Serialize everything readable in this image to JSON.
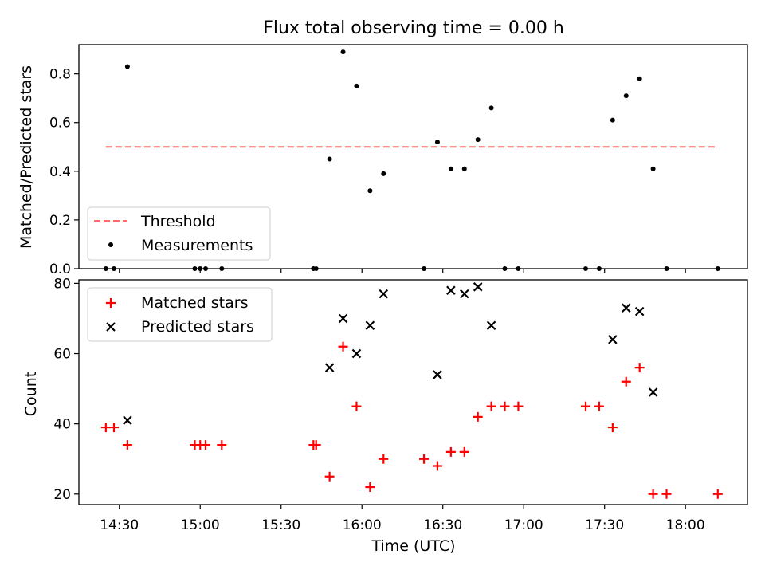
{
  "chart_data": [
    {
      "type": "scatter",
      "title": "Flux total observing time = 0.00 h",
      "xlabel": "",
      "ylabel": "Matched/Predicted stars",
      "ylim": [
        0,
        0.92
      ],
      "yticks": [
        0.0,
        0.2,
        0.4,
        0.6,
        0.8
      ],
      "ytick_labels": [
        "0.0",
        "0.2",
        "0.4",
        "0.6",
        "0.8"
      ],
      "xlim": [
        "14:15",
        "18:23"
      ],
      "grid": false,
      "legend_position": "lower-left",
      "threshold": {
        "name": "Threshold",
        "value": 0.5,
        "x_start": "14:25",
        "x_end": "18:12",
        "color": "#ff6b6b",
        "style": "dashed"
      },
      "series": [
        {
          "name": "Measurements",
          "marker": "dot",
          "color": "#000000",
          "x": [
            "14:25",
            "14:28",
            "14:33",
            "14:58",
            "15:00",
            "15:02",
            "15:08",
            "15:42",
            "15:43",
            "15:48",
            "15:53",
            "15:58",
            "16:03",
            "16:08",
            "16:23",
            "16:28",
            "16:33",
            "16:38",
            "16:43",
            "16:48",
            "16:53",
            "16:58",
            "17:23",
            "17:28",
            "17:33",
            "17:38",
            "17:43",
            "17:48",
            "17:53",
            "18:12"
          ],
          "y": [
            0,
            0,
            0.83,
            0,
            0,
            0,
            0,
            0,
            0,
            0.45,
            0.89,
            0.75,
            0.32,
            0.39,
            0,
            0.52,
            0.41,
            0.41,
            0.53,
            0.66,
            0,
            0,
            0,
            0,
            0.61,
            0.71,
            0.78,
            0.41,
            0,
            0
          ]
        }
      ]
    },
    {
      "type": "scatter",
      "title": "",
      "xlabel": "Time (UTC)",
      "ylabel": "Count",
      "ylim": [
        17,
        81
      ],
      "yticks": [
        20,
        40,
        60,
        80
      ],
      "ytick_labels": [
        "20",
        "40",
        "60",
        "80"
      ],
      "xlim": [
        "14:15",
        "18:23"
      ],
      "xticks": [
        "14:30",
        "15:00",
        "15:30",
        "16:00",
        "16:30",
        "17:00",
        "17:30",
        "18:00"
      ],
      "xtick_labels": [
        "14:30",
        "15:00",
        "15:30",
        "16:00",
        "16:30",
        "17:00",
        "17:30",
        "18:00"
      ],
      "grid": false,
      "legend_position": "upper-left",
      "series": [
        {
          "name": "Matched stars",
          "marker": "plus",
          "color": "#ff0000",
          "x": [
            "14:25",
            "14:28",
            "14:33",
            "14:58",
            "15:00",
            "15:02",
            "15:08",
            "15:42",
            "15:43",
            "15:48",
            "15:53",
            "15:58",
            "16:03",
            "16:08",
            "16:23",
            "16:28",
            "16:33",
            "16:38",
            "16:43",
            "16:48",
            "16:53",
            "16:58",
            "17:23",
            "17:28",
            "17:33",
            "17:38",
            "17:43",
            "17:48",
            "17:53",
            "18:12"
          ],
          "y": [
            39,
            39,
            34,
            34,
            34,
            34,
            34,
            34,
            34,
            25,
            62,
            45,
            22,
            30,
            30,
            28,
            32,
            32,
            42,
            45,
            45,
            45,
            45,
            45,
            39,
            52,
            56,
            20,
            20,
            20
          ]
        },
        {
          "name": "Predicted stars",
          "marker": "x",
          "color": "#000000",
          "x": [
            "14:33",
            "15:48",
            "15:53",
            "15:58",
            "16:03",
            "16:08",
            "16:28",
            "16:33",
            "16:38",
            "16:43",
            "16:48",
            "17:33",
            "17:38",
            "17:43",
            "17:48"
          ],
          "y": [
            41,
            56,
            70,
            60,
            68,
            77,
            54,
            78,
            77,
            79,
            68,
            64,
            73,
            72,
            49
          ]
        }
      ]
    }
  ]
}
